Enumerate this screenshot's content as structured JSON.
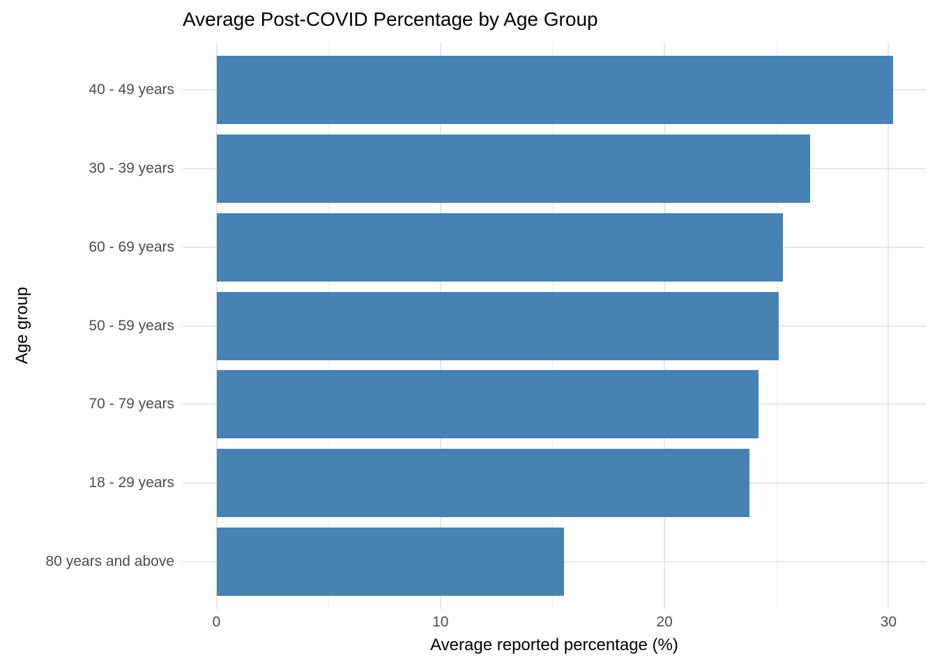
{
  "title": "Average Post-COVID Percentage by Age Group",
  "chart_data": {
    "type": "bar",
    "orientation": "horizontal",
    "title": "Average Post-COVID Percentage by Age Group",
    "xlabel": "Average reported percentage (%)",
    "ylabel": "Age group",
    "categories": [
      "40 - 49 years",
      "30 - 39 years",
      "60 - 69 years",
      "50 - 59 years",
      "70 - 79 years",
      "18 - 29 years",
      "80 years and above"
    ],
    "values": [
      30.2,
      26.5,
      25.3,
      25.1,
      24.2,
      23.8,
      15.5
    ],
    "xlim": [
      -1.5,
      31.7
    ],
    "x_major_ticks": [
      0,
      10,
      20,
      30
    ],
    "x_minor_ticks": [
      5,
      15,
      25
    ],
    "bar_color": "#4682B4",
    "major_grid_color": "#e7e7e7",
    "minor_grid_color": "#ededed",
    "background_color": "#ffffff",
    "grid": "on",
    "legend_position": "none"
  }
}
